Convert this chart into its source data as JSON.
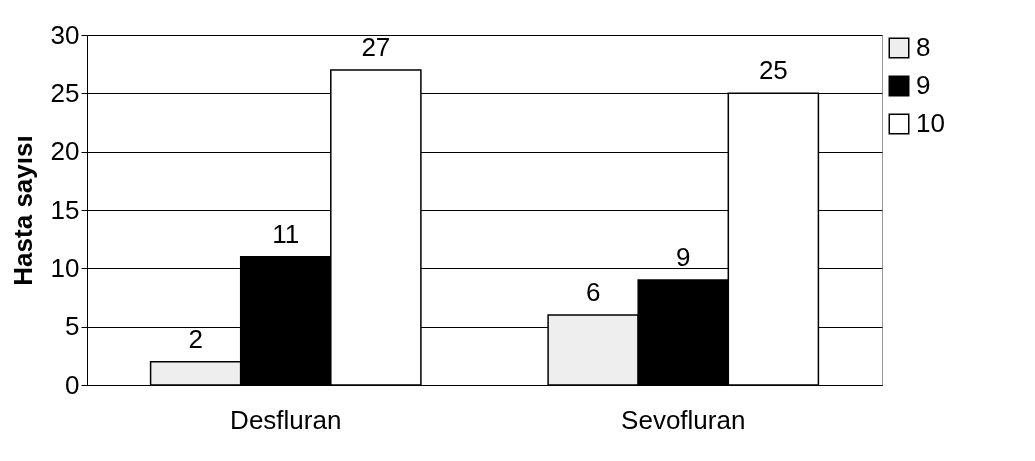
{
  "chart_data": {
    "type": "bar",
    "ylabel": "Hasta sayısı",
    "categories": [
      "Desfluran",
      "Sevofluran"
    ],
    "series": [
      {
        "name": "8",
        "color": "#eeeeee",
        "values": [
          2,
          6
        ]
      },
      {
        "name": "9",
        "color": "#000000",
        "values": [
          11,
          9
        ]
      },
      {
        "name": "10",
        "color": "#ffffff",
        "values": [
          27,
          25
        ]
      }
    ],
    "ylim": [
      0,
      30
    ],
    "yticks": [
      0,
      5,
      10,
      15,
      20,
      25,
      30
    ],
    "grid": "y",
    "legend": "right",
    "data_labels": true
  }
}
